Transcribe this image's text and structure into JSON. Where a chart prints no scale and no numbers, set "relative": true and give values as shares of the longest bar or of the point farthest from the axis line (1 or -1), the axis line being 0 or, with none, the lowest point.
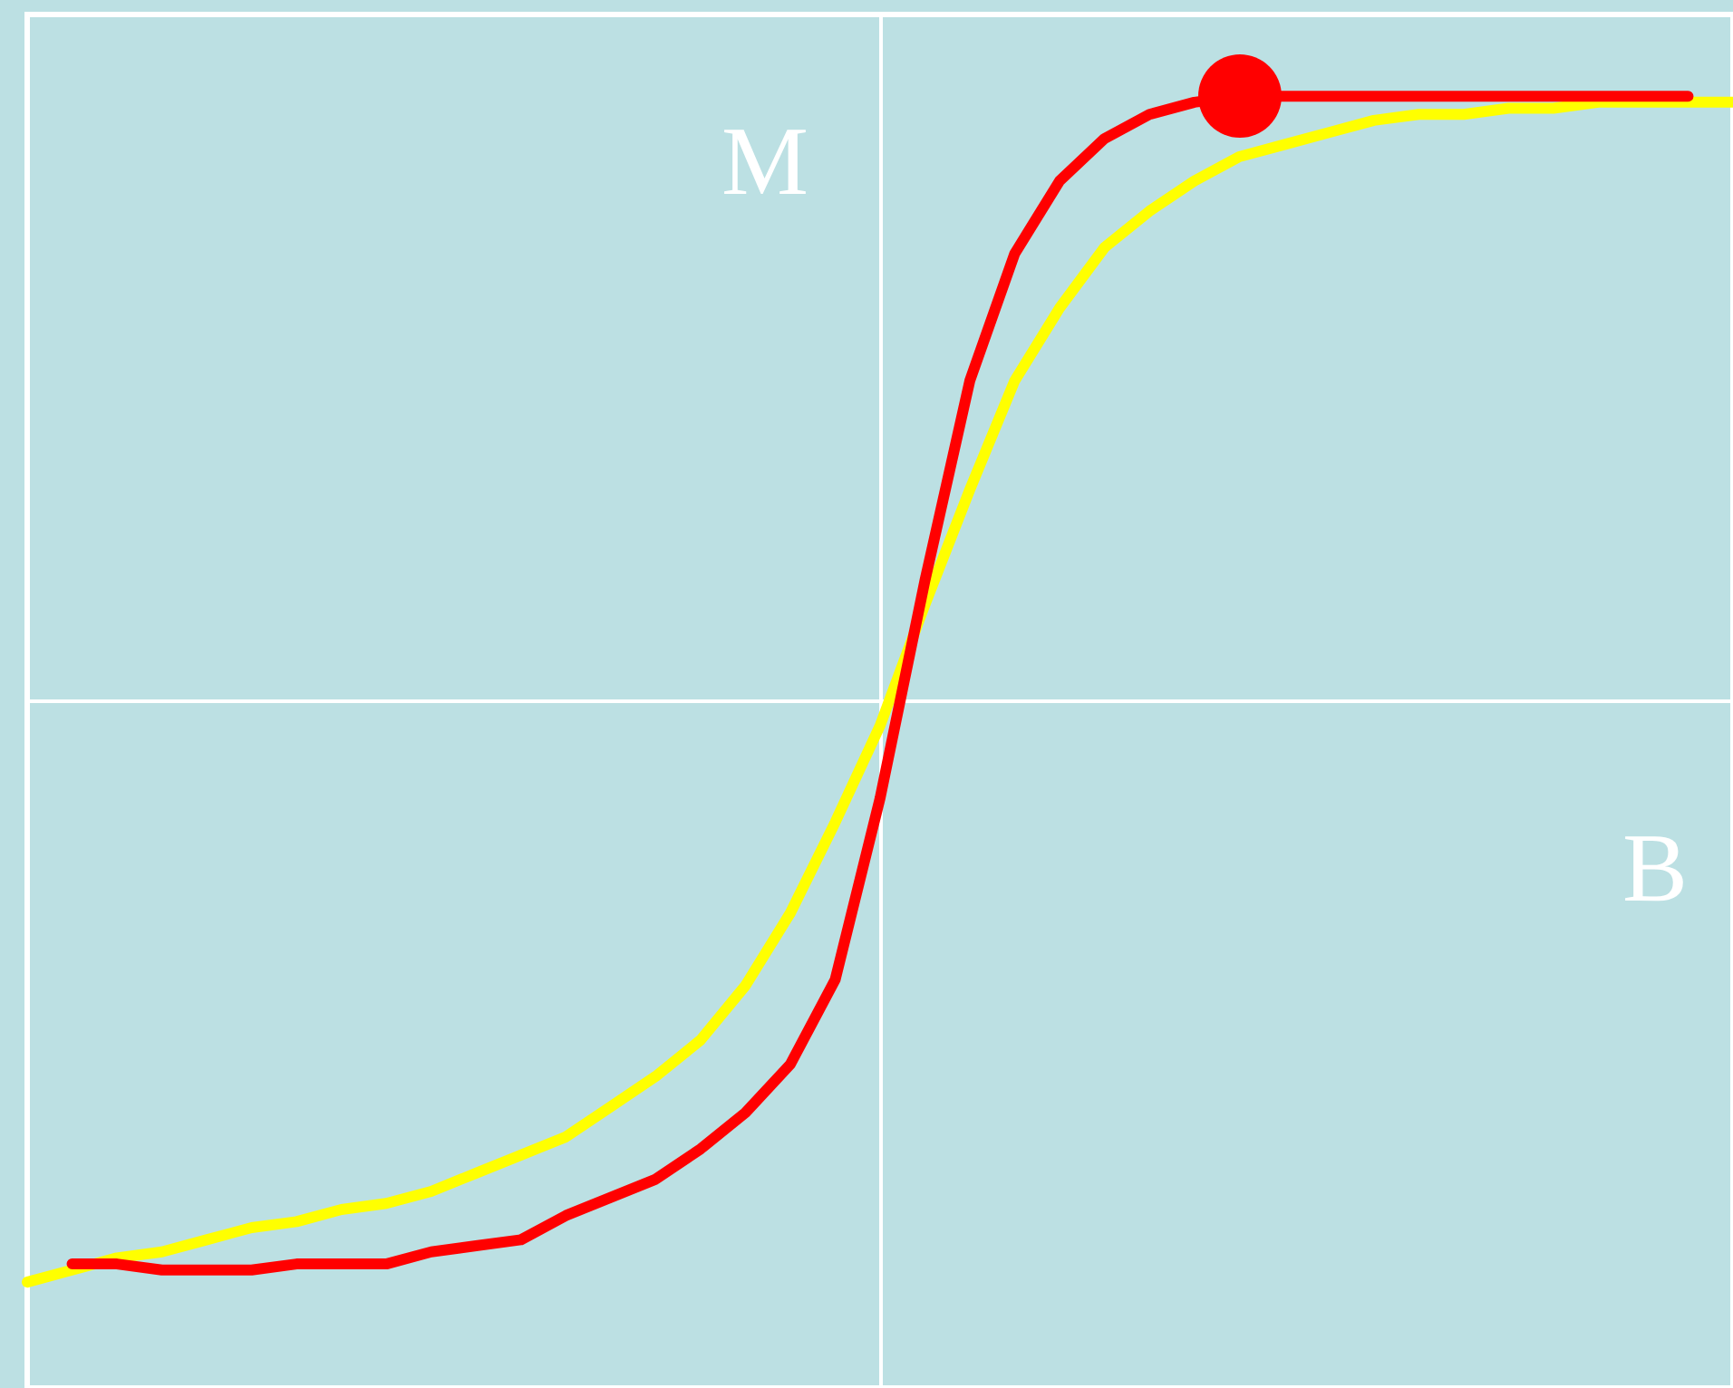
{
  "chart_data": {
    "type": "line",
    "relative": true,
    "xlabel": "B",
    "ylabel": "M",
    "line_style": "solid",
    "categories": [
      null,
      null,
      null,
      null,
      null,
      null,
      null,
      null,
      null,
      null,
      null,
      null,
      null,
      null,
      null,
      null,
      null,
      null,
      null,
      null,
      null,
      null,
      null,
      null,
      null,
      null,
      null,
      null,
      null,
      null,
      null,
      null,
      null,
      null,
      null,
      null,
      null,
      null,
      null
    ],
    "series": [
      {
        "color": "#ffff00",
        "values": [
          -0.96,
          -0.94,
          -0.92,
          -0.91,
          -0.89,
          -0.87,
          -0.86,
          -0.84,
          -0.83,
          -0.81,
          -0.78,
          -0.75,
          -0.72,
          -0.67,
          -0.62,
          -0.56,
          -0.47,
          -0.35,
          -0.2,
          -0.04,
          0.16,
          0.35,
          0.53,
          0.65,
          0.75,
          0.81,
          0.86,
          0.9,
          0.92,
          0.94,
          0.96,
          0.97,
          0.97,
          0.98,
          0.98,
          0.99,
          0.99,
          0.99,
          0.99
        ]
      },
      {
        "color": "#ff0000",
        "values": [
          null,
          -0.93,
          -0.93,
          -0.94,
          -0.94,
          -0.94,
          -0.93,
          -0.93,
          -0.93,
          -0.91,
          -0.9,
          -0.89,
          -0.85,
          -0.82,
          -0.79,
          -0.74,
          -0.68,
          -0.6,
          -0.46,
          -0.16,
          0.2,
          0.53,
          0.74,
          0.86,
          0.93,
          0.97,
          0.99,
          1.0,
          1.0,
          1.0,
          1.0,
          1.0,
          1.0,
          1.0,
          1.0,
          1.0,
          1.0,
          1.0,
          null
        ]
      }
    ]
  }
}
